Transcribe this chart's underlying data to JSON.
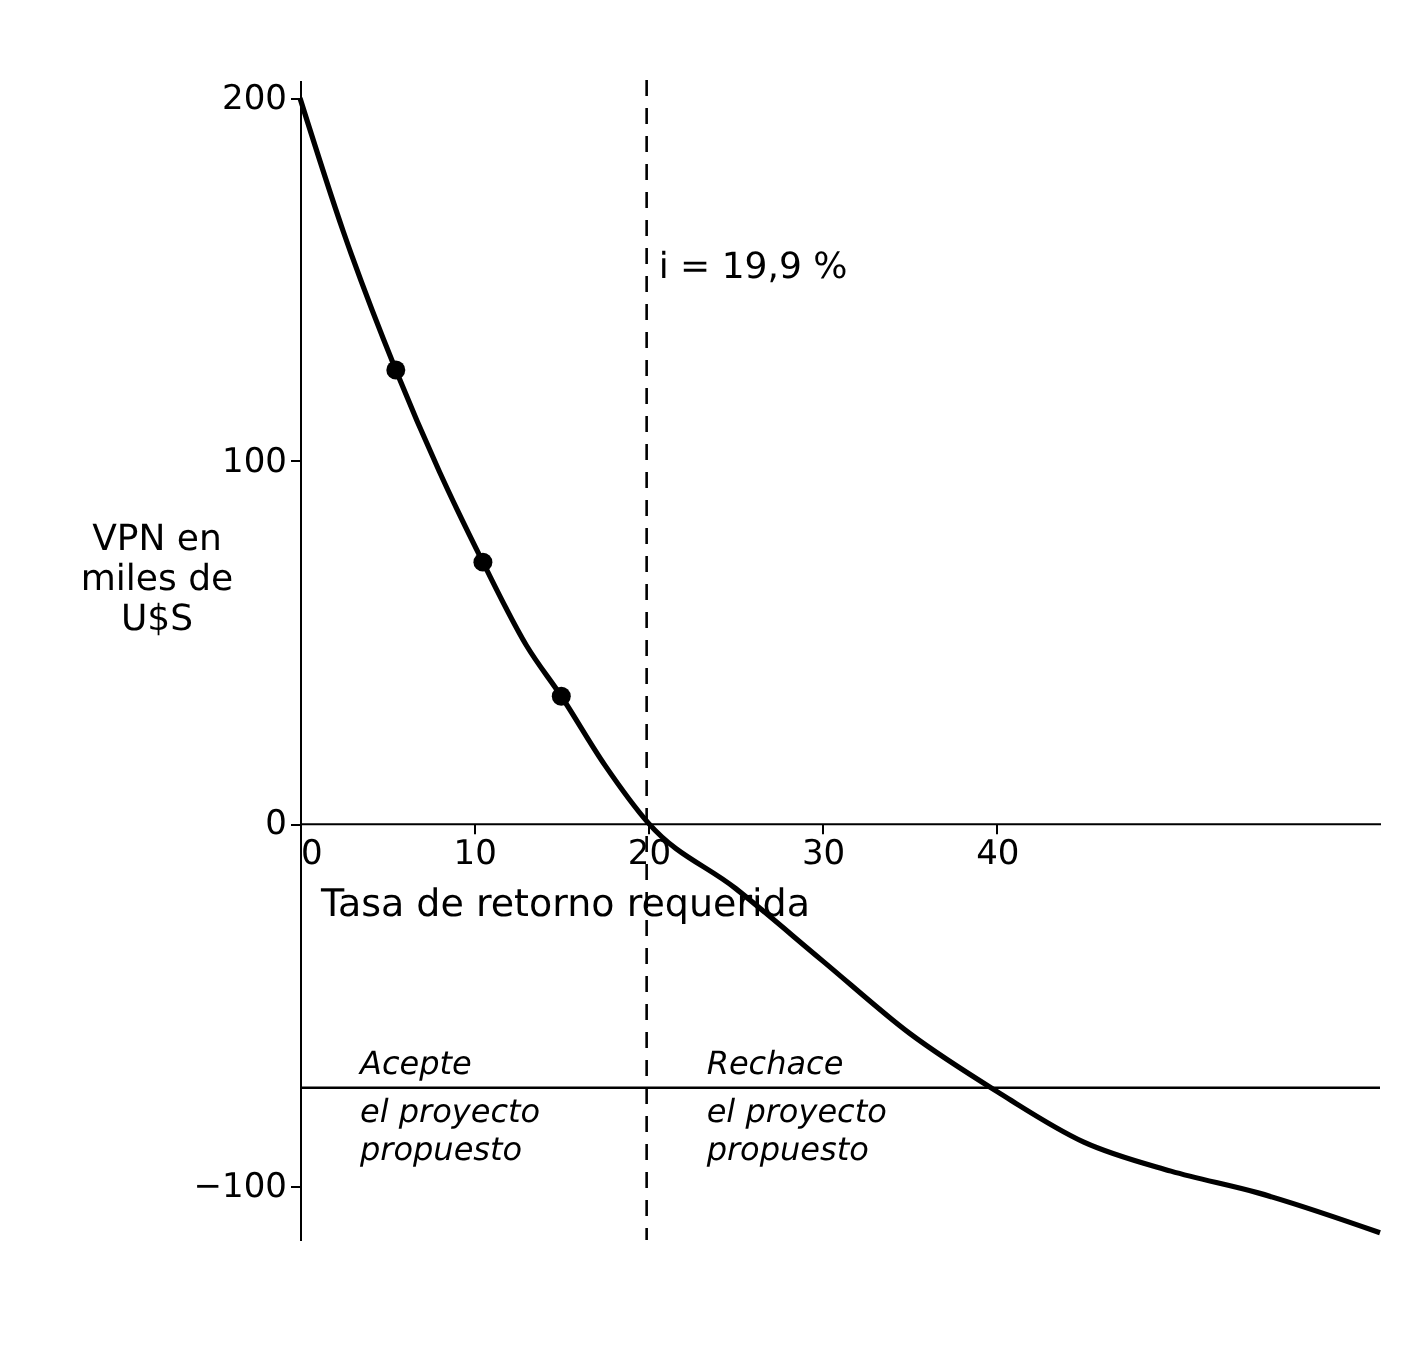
{
  "chart_data": {
    "type": "line",
    "xlabel": "Tasa de retorno requerida",
    "ylabel": "VPN en\nmiles de\nU$S",
    "xlim": [
      0,
      62
    ],
    "ylim": [
      -115,
      205
    ],
    "xticks": [
      0,
      10,
      20,
      30,
      40
    ],
    "yticks": [
      -100,
      0,
      100,
      200
    ],
    "series": [
      {
        "color": "#000000",
        "x": [
          0,
          2.5,
          5.5,
          8,
          10.5,
          13,
          15,
          17.5,
          20,
          25,
          30,
          35,
          40,
          45,
          50,
          55,
          62
        ],
        "values": [
          200,
          163,
          125,
          97,
          72,
          49,
          35,
          16,
          0,
          -18,
          -38,
          -58,
          -74,
          -88,
          -96,
          -102,
          -113
        ]
      },
      {
        "type": "scatter",
        "color": "#000000",
        "marker": "circle",
        "x": [
          5.5,
          10.5,
          15
        ],
        "values": [
          125,
          72,
          35
        ]
      }
    ],
    "ref_lines": [
      {
        "axis": "x",
        "value": 19.9,
        "label": "i = 19,9 %",
        "line_style": "dashed"
      },
      {
        "axis": "y",
        "value": -73
      }
    ],
    "annotations": [
      "Acepte\nel proyecto\npropuesto",
      "Rechace\nel proyecto\npropuesto"
    ],
    "grid": false
  }
}
